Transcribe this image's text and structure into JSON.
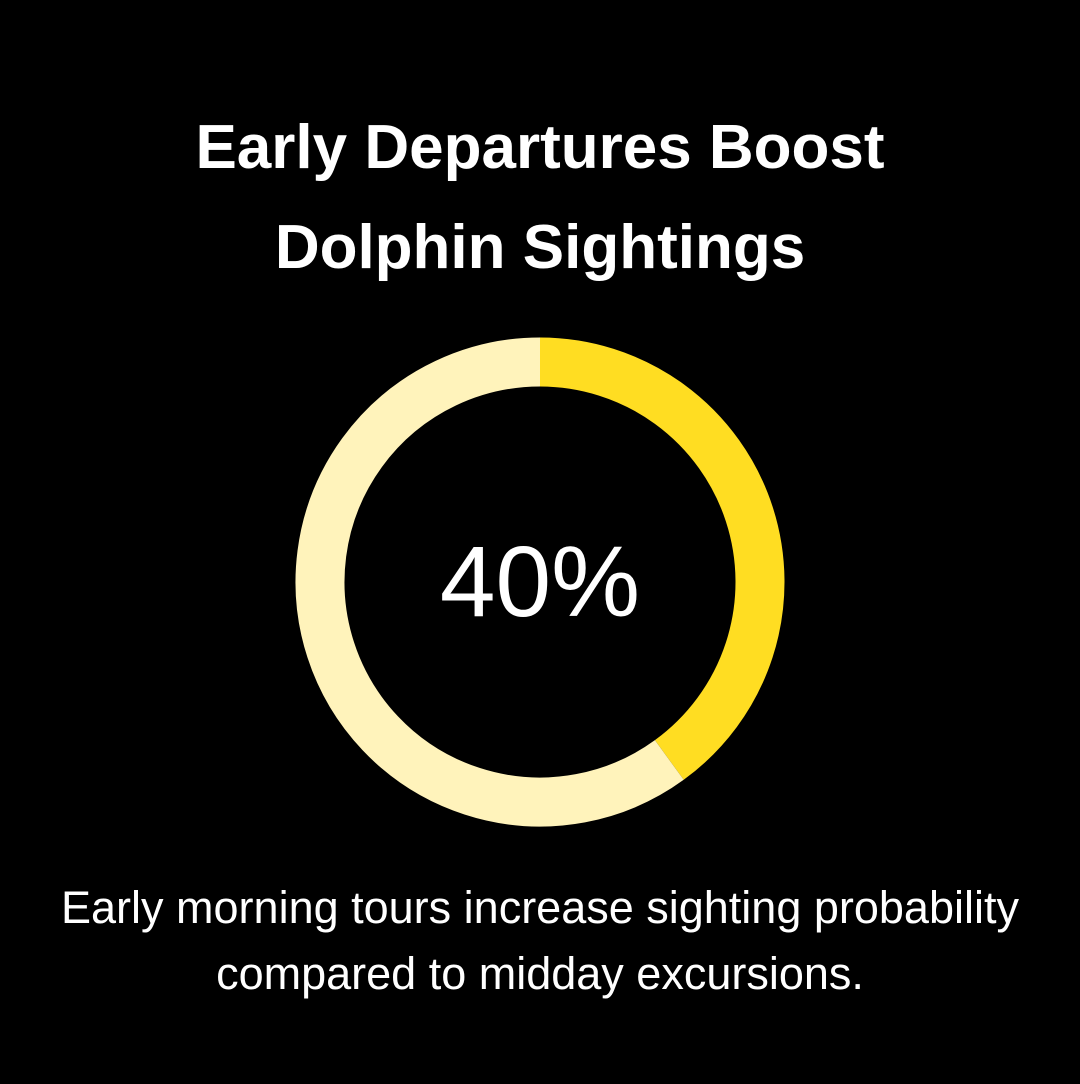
{
  "chart_data": {
    "type": "donut",
    "title": "Early Departures Boost Dolphin Sightings",
    "values": [
      40,
      60
    ],
    "value_labels": [
      "40%",
      null
    ],
    "colors": [
      "#FFDD22",
      "#FFF3BB"
    ],
    "description": "Early morning tours increase sighting probability compared to midday excursions."
  }
}
